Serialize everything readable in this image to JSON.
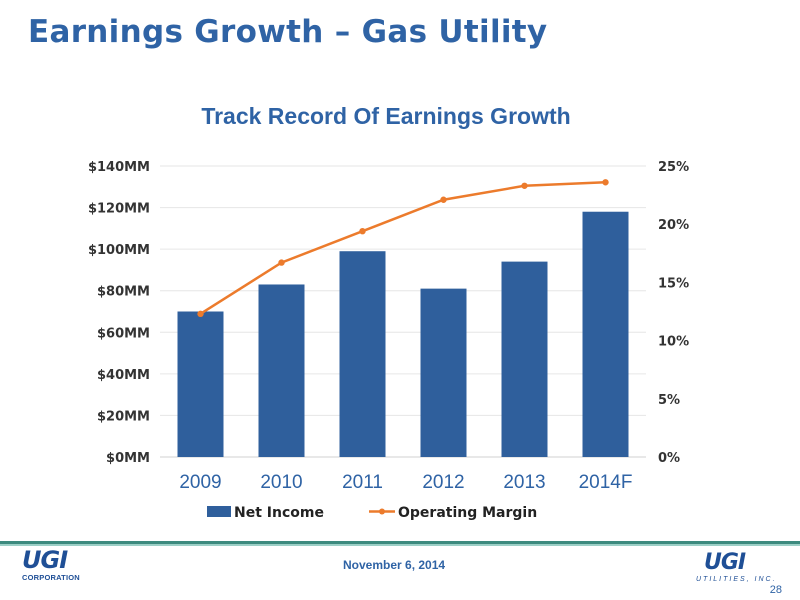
{
  "slide": {
    "title": "Earnings Growth – Gas Utility",
    "date": "November 6, 2014",
    "page_number": "28",
    "logo_left_mark": "UGI",
    "logo_left_sub": "CORPORATION",
    "logo_right_mark": "UGI",
    "logo_right_sub": "UTILITIES, INC."
  },
  "colors": {
    "title": "#2f63a5",
    "bar": "#2f5f9c",
    "line": "#ec7b2c"
  },
  "chart_data": {
    "type": "bar",
    "title": "Track Record Of Earnings Growth",
    "categories": [
      "2009",
      "2010",
      "2011",
      "2012",
      "2013",
      "2014F"
    ],
    "series": [
      {
        "name": "Net Income",
        "type": "bar",
        "axis": "left",
        "values": [
          70,
          83,
          99,
          81,
          94,
          118
        ]
      },
      {
        "name": "Operating Margin",
        "type": "line",
        "axis": "right",
        "values": [
          12.3,
          16.7,
          19.4,
          22.1,
          23.3,
          23.6
        ]
      }
    ],
    "y_left": {
      "min": 0,
      "max": 140,
      "step": 20,
      "ticks": [
        "$0MM",
        "$20MM",
        "$40MM",
        "$60MM",
        "$80MM",
        "$100MM",
        "$120MM",
        "$140MM"
      ]
    },
    "y_right": {
      "min": 0,
      "max": 25,
      "step": 5,
      "ticks": [
        "0%",
        "5%",
        "10%",
        "15%",
        "20%",
        "25%"
      ]
    },
    "grid": true,
    "legend_position": "bottom"
  }
}
